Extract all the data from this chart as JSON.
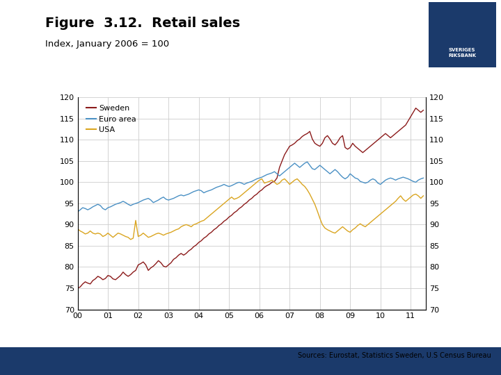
{
  "title": "Figure  3.12.  Retail sales",
  "subtitle": "Index, January 2006 = 100",
  "sources": "Sources: Eurostat, Statistics Sweden, U.S Census Bureau",
  "colors": {
    "sweden": "#8B1A1A",
    "euro": "#4A90C4",
    "usa": "#DAA520",
    "background_bar": "#1B3A6B",
    "logo_bg": "#1B3A6B",
    "grid": "#CCCCCC",
    "white": "#FFFFFF"
  },
  "ylim": [
    70,
    120
  ],
  "yticks": [
    70,
    75,
    80,
    85,
    90,
    95,
    100,
    105,
    110,
    115,
    120
  ],
  "xlim": [
    2000.0,
    2011.5
  ],
  "xtick_labels": [
    "00",
    "01",
    "02",
    "03",
    "04",
    "05",
    "06",
    "07",
    "08",
    "09",
    "10",
    "11"
  ],
  "xtick_positions": [
    2000,
    2001,
    2002,
    2003,
    2004,
    2005,
    2006,
    2007,
    2008,
    2009,
    2010,
    2011
  ],
  "legend": [
    "Sweden",
    "Euro area",
    "USA"
  ],
  "sweden": [
    75.0,
    75.3,
    76.0,
    76.5,
    76.2,
    76.0,
    76.8,
    77.2,
    77.8,
    77.5,
    77.0,
    77.3,
    78.0,
    77.8,
    77.2,
    77.0,
    77.5,
    78.0,
    78.8,
    78.2,
    77.8,
    78.2,
    78.8,
    79.2,
    80.5,
    80.8,
    81.2,
    80.5,
    79.2,
    79.8,
    80.2,
    80.8,
    81.5,
    81.0,
    80.2,
    80.0,
    80.5,
    81.0,
    81.8,
    82.2,
    82.8,
    83.2,
    82.8,
    83.2,
    83.8,
    84.2,
    84.8,
    85.2,
    85.8,
    86.2,
    86.8,
    87.2,
    87.8,
    88.2,
    88.8,
    89.2,
    89.8,
    90.2,
    90.8,
    91.2,
    91.8,
    92.2,
    92.8,
    93.2,
    93.8,
    94.2,
    94.8,
    95.2,
    95.8,
    96.2,
    96.8,
    97.2,
    97.8,
    98.2,
    98.8,
    99.2,
    99.5,
    100.0,
    100.2,
    101.0,
    103.5,
    105.0,
    106.5,
    107.5,
    108.5,
    108.8,
    109.2,
    109.8,
    110.2,
    110.8,
    111.2,
    111.5,
    112.0,
    110.2,
    109.2,
    108.8,
    108.5,
    109.2,
    110.5,
    111.0,
    110.2,
    109.2,
    108.8,
    109.5,
    110.5,
    111.0,
    108.2,
    107.8,
    108.2,
    109.2,
    108.5,
    108.0,
    107.5,
    107.0,
    107.5,
    108.0,
    108.5,
    109.0,
    109.5,
    110.0,
    110.5,
    111.0,
    111.5,
    111.0,
    110.5,
    111.0,
    111.5,
    112.0,
    112.5,
    113.0,
    113.5,
    114.5,
    115.5,
    116.5,
    117.5,
    117.0,
    116.5,
    117.0
  ],
  "euro": [
    93.0,
    93.5,
    94.0,
    93.8,
    93.5,
    93.8,
    94.2,
    94.5,
    94.8,
    94.5,
    93.8,
    93.5,
    94.0,
    94.2,
    94.5,
    94.8,
    95.0,
    95.2,
    95.5,
    95.2,
    94.8,
    94.5,
    94.8,
    95.0,
    95.2,
    95.5,
    95.8,
    96.0,
    96.2,
    95.8,
    95.2,
    95.5,
    95.8,
    96.2,
    96.5,
    96.0,
    95.8,
    96.0,
    96.2,
    96.5,
    96.8,
    97.0,
    96.8,
    97.0,
    97.2,
    97.5,
    97.8,
    98.0,
    98.2,
    98.0,
    97.5,
    97.8,
    98.0,
    98.2,
    98.5,
    98.8,
    99.0,
    99.2,
    99.5,
    99.2,
    99.0,
    99.2,
    99.5,
    99.8,
    100.0,
    99.8,
    99.5,
    99.8,
    100.0,
    100.2,
    100.5,
    100.8,
    101.0,
    101.2,
    101.5,
    101.8,
    102.0,
    102.2,
    102.5,
    102.0,
    101.5,
    102.0,
    102.5,
    103.0,
    103.5,
    104.0,
    104.5,
    104.0,
    103.5,
    104.0,
    104.5,
    104.8,
    104.0,
    103.2,
    103.0,
    103.5,
    104.0,
    103.5,
    103.0,
    102.5,
    102.0,
    102.5,
    103.0,
    102.5,
    101.8,
    101.2,
    100.8,
    101.2,
    102.0,
    101.5,
    101.0,
    100.8,
    100.2,
    100.0,
    99.8,
    100.0,
    100.5,
    100.8,
    100.5,
    99.8,
    99.5,
    100.0,
    100.5,
    100.8,
    101.0,
    100.8,
    100.5,
    100.8,
    101.0,
    101.2,
    101.0,
    100.8,
    100.5,
    100.2,
    100.0,
    100.5,
    100.8,
    101.0
  ],
  "usa": [
    89.0,
    88.5,
    88.2,
    87.8,
    88.0,
    88.5,
    88.0,
    87.8,
    88.0,
    87.8,
    87.2,
    87.5,
    88.0,
    87.5,
    87.0,
    87.5,
    88.0,
    87.8,
    87.5,
    87.2,
    87.0,
    86.5,
    86.8,
    91.0,
    87.2,
    87.5,
    88.0,
    87.5,
    87.0,
    87.2,
    87.5,
    87.8,
    88.0,
    87.8,
    87.5,
    87.8,
    88.0,
    88.2,
    88.5,
    88.8,
    89.0,
    89.5,
    89.8,
    90.0,
    89.8,
    89.5,
    90.0,
    90.2,
    90.5,
    90.8,
    91.0,
    91.5,
    92.0,
    92.5,
    93.0,
    93.5,
    94.0,
    94.5,
    95.0,
    95.5,
    96.0,
    96.5,
    96.0,
    96.2,
    96.5,
    97.0,
    97.5,
    98.0,
    98.5,
    99.0,
    99.5,
    100.0,
    100.5,
    100.8,
    99.8,
    100.0,
    100.2,
    100.5,
    100.0,
    99.5,
    99.8,
    100.5,
    100.8,
    100.2,
    99.5,
    100.0,
    100.5,
    100.8,
    100.2,
    99.5,
    99.0,
    98.2,
    97.2,
    96.0,
    94.8,
    93.2,
    91.5,
    90.0,
    89.2,
    88.8,
    88.5,
    88.2,
    88.0,
    88.5,
    89.0,
    89.5,
    89.0,
    88.5,
    88.2,
    88.8,
    89.2,
    89.8,
    90.2,
    89.8,
    89.5,
    90.0,
    90.5,
    91.0,
    91.5,
    92.0,
    92.5,
    93.0,
    93.5,
    94.0,
    94.5,
    95.0,
    95.5,
    96.2,
    96.8,
    96.0,
    95.5,
    96.0,
    96.5,
    97.0,
    97.2,
    96.8,
    96.2,
    96.8
  ]
}
